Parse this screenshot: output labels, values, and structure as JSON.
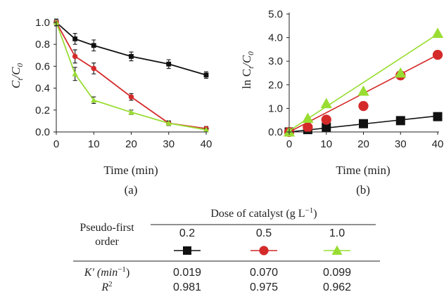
{
  "chart_data": [
    {
      "panel": "(a)",
      "type": "line",
      "xlabel": "Time (min)",
      "ylabel": "C_t/C_0",
      "xlim": [
        0,
        40
      ],
      "ylim": [
        0,
        1.0
      ],
      "x_ticks": [
        "0",
        "10",
        "20",
        "30",
        "40"
      ],
      "y_ticks": [
        "0.0",
        "0.2",
        "0.4",
        "0.6",
        "0.8",
        "1.0"
      ],
      "grid": false,
      "x": [
        0,
        5,
        10,
        20,
        30,
        40
      ],
      "series": [
        {
          "dose": "0.2",
          "color": "#111111",
          "marker": "square",
          "values": [
            1.0,
            0.85,
            0.79,
            0.69,
            0.62,
            0.52
          ],
          "errors": [
            0.03,
            0.05,
            0.05,
            0.04,
            0.04,
            0.03
          ]
        },
        {
          "dose": "0.5",
          "color": "#d42a2a",
          "marker": "circle",
          "values": [
            1.0,
            0.69,
            0.58,
            0.32,
            0.08,
            0.03
          ],
          "errors": [
            0.03,
            0.06,
            0.05,
            0.03,
            0.02,
            0.02
          ]
        },
        {
          "dose": "1.0",
          "color": "#99dd33",
          "marker": "triangle",
          "values": [
            1.0,
            0.53,
            0.29,
            0.18,
            0.08,
            0.02
          ],
          "errors": [
            0.03,
            0.06,
            0.03,
            0.02,
            0.02,
            0.01
          ]
        }
      ]
    },
    {
      "panel": "(b)",
      "type": "scatter",
      "xlabel": "Time (min)",
      "ylabel": "ln C_t/C_0",
      "xlim": [
        0,
        40
      ],
      "ylim": [
        0,
        5.0
      ],
      "x_ticks": [
        "0",
        "10",
        "20",
        "30",
        "40"
      ],
      "y_ticks": [
        "0.0",
        "1.0",
        "2.0",
        "3.0",
        "4.0",
        "5.0"
      ],
      "grid": false,
      "x": [
        0,
        5,
        10,
        20,
        30,
        40
      ],
      "series": [
        {
          "dose": "0.2",
          "color": "#111111",
          "marker": "square",
          "values": [
            0.0,
            0.1,
            0.2,
            0.35,
            0.48,
            0.65
          ],
          "fit": [
            0.0,
            0.68
          ]
        },
        {
          "dose": "0.5",
          "color": "#d42a2a",
          "marker": "circle",
          "values": [
            0.0,
            0.2,
            0.52,
            1.1,
            2.4,
            3.27
          ],
          "fit": [
            0.0,
            3.27
          ]
        },
        {
          "dose": "1.0",
          "color": "#99dd33",
          "marker": "triangle",
          "values": [
            0.0,
            0.58,
            1.2,
            1.73,
            2.5,
            4.18
          ],
          "fit": [
            0.05,
            4.15
          ]
        }
      ]
    }
  ],
  "table": {
    "row_header_line1": "Pseudo-first",
    "row_header_line2": "order",
    "group_header": "Dose of catalyst (g L",
    "group_header_sup": "−1",
    "group_header_close": ")",
    "doses": [
      "0.2",
      "0.5",
      "1.0"
    ],
    "k_label": "K′ (min",
    "k_label_sup": "−1",
    "k_label_close": ")",
    "r2_label": "R",
    "r2_label_sup": "2",
    "k_values": [
      "0.019",
      "0.070",
      "0.099"
    ],
    "r2_values": [
      "0.981",
      "0.975",
      "0.962"
    ]
  },
  "ylabel_a_main": "C",
  "ylabel_a_sub1": "t",
  "ylabel_a_slash": "/C",
  "ylabel_a_sub2": "0",
  "ylabel_b_prefix": "ln C",
  "ylabel_b_sub1": "t",
  "ylabel_b_slash": "/C",
  "ylabel_b_sub2": "0",
  "panel_a_label": "(a)",
  "panel_b_label": "(b)",
  "xlabel": "Time (min)"
}
